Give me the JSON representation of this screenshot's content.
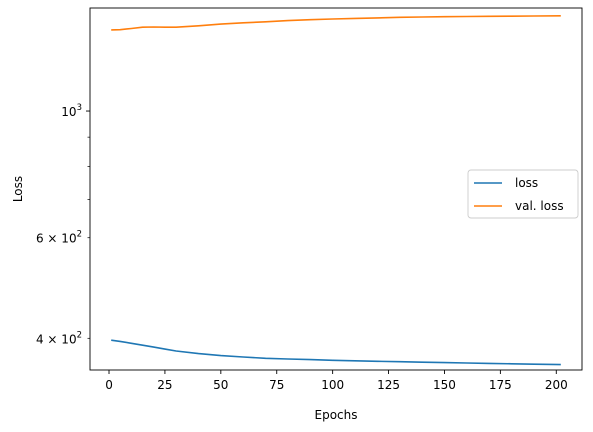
{
  "chart_data": {
    "type": "line",
    "xlabel": "Epochs",
    "ylabel": "Loss",
    "xlim": [
      -8.5,
      211.5
    ],
    "ylim": [
      352,
      1515
    ],
    "yscale": "log",
    "grid": false,
    "legend_position": "center-right",
    "x_ticks": [
      0,
      25,
      50,
      75,
      100,
      125,
      150,
      175,
      200
    ],
    "x_tick_labels": [
      "0",
      "25",
      "50",
      "75",
      "100",
      "125",
      "150",
      "175",
      "200"
    ],
    "y_major_ticks": [
      1000
    ],
    "y_major_tick_labels": [
      {
        "base": "10",
        "exp": "3"
      }
    ],
    "y_minor_ticks": [
      400,
      600,
      700,
      800,
      900
    ],
    "y_minor_tick_labels": [
      {
        "value": 400,
        "mantissa": "4",
        "base": "10",
        "exp": "2"
      },
      {
        "value": 600,
        "mantissa": "6",
        "base": "10",
        "exp": "2"
      }
    ],
    "series": [
      {
        "name": "loss",
        "color": "#1f77b4",
        "x": [
          1,
          5,
          10,
          15,
          20,
          25,
          30,
          40,
          50,
          60,
          70,
          80,
          90,
          100,
          110,
          120,
          130,
          140,
          150,
          160,
          170,
          180,
          190,
          202
        ],
        "y": [
          397,
          395,
          392,
          389,
          386,
          383,
          380,
          376,
          373,
          371,
          369,
          368,
          367,
          366,
          365.3,
          364.6,
          364,
          363.3,
          362.7,
          362.1,
          361.5,
          360.9,
          360.4,
          359.7
        ]
      },
      {
        "name": "val. loss",
        "color": "#ff7f0e",
        "x": [
          1,
          5,
          10,
          15,
          20,
          25,
          30,
          40,
          50,
          60,
          70,
          80,
          90,
          100,
          110,
          120,
          130,
          140,
          150,
          160,
          170,
          180,
          190,
          202
        ],
        "y": [
          1387,
          1388,
          1395,
          1402,
          1403,
          1402,
          1402,
          1410,
          1420,
          1427,
          1433,
          1440,
          1445,
          1449,
          1453,
          1456,
          1459,
          1461,
          1463,
          1464,
          1465,
          1466,
          1467,
          1468
        ]
      }
    ]
  }
}
